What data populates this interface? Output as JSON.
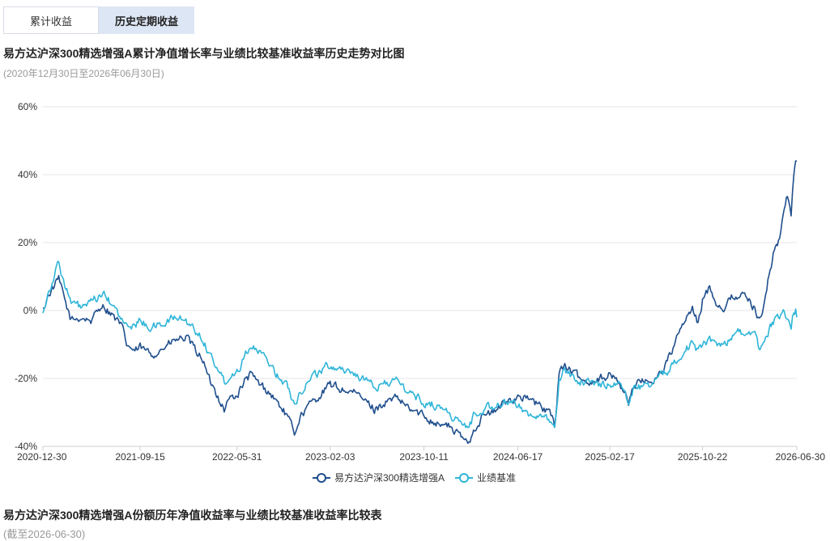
{
  "tabs": [
    {
      "label": "累计收益",
      "active": false
    },
    {
      "label": "历史定期收益",
      "active": true
    }
  ],
  "chart_title": "易方达沪深300精选增强A累计净值增长率与业绩比较基准收益率历史走势对比图",
  "chart_subtitle": "(2020年12月30日至2026年06月30日)",
  "table_title": "易方达沪深300精选增强A份额历年净值收益率与业绩比较基准收益率比较表",
  "table_subtitle": "(截至2026-06-30)",
  "chart_data": {
    "type": "line",
    "ylim": [
      -40,
      60
    ],
    "y_ticks": [
      -40,
      -20,
      0,
      20,
      40,
      60
    ],
    "y_tick_labels": [
      "-40%",
      "-20%",
      "0%",
      "20%",
      "40%",
      "60%"
    ],
    "x_tick_labels": [
      "2020-12-30",
      "2021-09-15",
      "2022-05-31",
      "2023-02-03",
      "2023-10-11",
      "2024-06-17",
      "2025-02-17",
      "2025-10-22",
      "2026-06-30"
    ],
    "x_range": [
      "2020-12-30",
      "2026-06-30"
    ],
    "grid": "horizontal",
    "legend_position": "bottom-center",
    "series": [
      {
        "name": "易方达沪深300精选增强A",
        "color": "#1f4e8c",
        "points": [
          [
            "2020-12-30",
            0
          ],
          [
            "2021-01-15",
            5
          ],
          [
            "2021-02-10",
            9
          ],
          [
            "2021-02-26",
            3
          ],
          [
            "2021-03-15",
            -3
          ],
          [
            "2021-04-10",
            -2
          ],
          [
            "2021-05-10",
            -3
          ],
          [
            "2021-06-05",
            2
          ],
          [
            "2021-07-01",
            -1
          ],
          [
            "2021-07-28",
            -5
          ],
          [
            "2021-08-10",
            -10
          ],
          [
            "2021-09-01",
            -12
          ],
          [
            "2021-09-15",
            -11
          ],
          [
            "2021-10-15",
            -13
          ],
          [
            "2021-11-15",
            -11
          ],
          [
            "2021-12-15",
            -9
          ],
          [
            "2022-01-15",
            -8
          ],
          [
            "2022-02-10",
            -12
          ],
          [
            "2022-03-01",
            -14
          ],
          [
            "2022-03-15",
            -20
          ],
          [
            "2022-04-10",
            -25
          ],
          [
            "2022-04-27",
            -29
          ],
          [
            "2022-05-10",
            -26
          ],
          [
            "2022-05-31",
            -25
          ],
          [
            "2022-06-20",
            -21
          ],
          [
            "2022-07-05",
            -19
          ],
          [
            "2022-08-01",
            -22
          ],
          [
            "2022-08-25",
            -24
          ],
          [
            "2022-09-15",
            -27
          ],
          [
            "2022-10-05",
            -30
          ],
          [
            "2022-10-31",
            -36
          ],
          [
            "2022-11-15",
            -31
          ],
          [
            "2022-12-10",
            -28
          ],
          [
            "2023-01-05",
            -25
          ],
          [
            "2023-02-03",
            -22
          ],
          [
            "2023-03-01",
            -23
          ],
          [
            "2023-04-01",
            -24
          ],
          [
            "2023-05-01",
            -26
          ],
          [
            "2023-06-01",
            -29
          ],
          [
            "2023-07-01",
            -27
          ],
          [
            "2023-08-01",
            -26
          ],
          [
            "2023-09-01",
            -29
          ],
          [
            "2023-10-11",
            -31
          ],
          [
            "2023-11-15",
            -33
          ],
          [
            "2023-12-15",
            -34
          ],
          [
            "2024-01-15",
            -37
          ],
          [
            "2024-02-05",
            -39
          ],
          [
            "2024-02-20",
            -35
          ],
          [
            "2024-03-15",
            -31
          ],
          [
            "2024-04-15",
            -30
          ],
          [
            "2024-05-15",
            -27
          ],
          [
            "2024-06-17",
            -25
          ],
          [
            "2024-07-15",
            -26
          ],
          [
            "2024-08-10",
            -28
          ],
          [
            "2024-09-10",
            -30
          ],
          [
            "2024-09-23",
            -34
          ],
          [
            "2024-10-05",
            -18
          ],
          [
            "2024-10-20",
            -16
          ],
          [
            "2024-11-15",
            -19
          ],
          [
            "2024-12-15",
            -21
          ],
          [
            "2025-01-15",
            -20
          ],
          [
            "2025-02-17",
            -19
          ],
          [
            "2025-03-15",
            -21
          ],
          [
            "2025-04-08",
            -27
          ],
          [
            "2025-04-20",
            -22
          ],
          [
            "2025-05-20",
            -21
          ],
          [
            "2025-06-20",
            -20
          ],
          [
            "2025-07-20",
            -15
          ],
          [
            "2025-08-20",
            -7
          ],
          [
            "2025-09-10",
            -2
          ],
          [
            "2025-09-25",
            0
          ],
          [
            "2025-10-10",
            -4
          ],
          [
            "2025-10-22",
            3
          ],
          [
            "2025-11-10",
            7
          ],
          [
            "2025-11-30",
            2
          ],
          [
            "2025-12-20",
            1
          ],
          [
            "2026-01-10",
            4
          ],
          [
            "2026-01-30",
            5
          ],
          [
            "2026-02-20",
            3
          ],
          [
            "2026-03-10",
            1
          ],
          [
            "2026-03-22",
            -3
          ],
          [
            "2026-04-05",
            3
          ],
          [
            "2026-04-20",
            12
          ],
          [
            "2026-05-01",
            18
          ],
          [
            "2026-05-15",
            21
          ],
          [
            "2026-05-25",
            28
          ],
          [
            "2026-06-05",
            34
          ],
          [
            "2026-06-15",
            28
          ],
          [
            "2026-06-22",
            40
          ],
          [
            "2026-06-27",
            45
          ],
          [
            "2026-06-30",
            44
          ]
        ]
      },
      {
        "name": "业绩基准",
        "color": "#2fb5d8",
        "points": [
          [
            "2020-12-30",
            0
          ],
          [
            "2021-01-15",
            6
          ],
          [
            "2021-02-10",
            14
          ],
          [
            "2021-02-26",
            8
          ],
          [
            "2021-03-15",
            2
          ],
          [
            "2021-04-10",
            1
          ],
          [
            "2021-05-10",
            2
          ],
          [
            "2021-06-05",
            5
          ],
          [
            "2021-07-01",
            2
          ],
          [
            "2021-07-28",
            -3
          ],
          [
            "2021-08-10",
            -5
          ],
          [
            "2021-09-01",
            -4
          ],
          [
            "2021-09-15",
            -3
          ],
          [
            "2021-10-15",
            -5
          ],
          [
            "2021-11-15",
            -4
          ],
          [
            "2021-12-15",
            -2
          ],
          [
            "2022-01-15",
            -3
          ],
          [
            "2022-02-10",
            -6
          ],
          [
            "2022-03-01",
            -8
          ],
          [
            "2022-03-15",
            -12
          ],
          [
            "2022-04-10",
            -17
          ],
          [
            "2022-04-27",
            -21
          ],
          [
            "2022-05-10",
            -19
          ],
          [
            "2022-05-31",
            -18
          ],
          [
            "2022-06-20",
            -13
          ],
          [
            "2022-07-05",
            -10
          ],
          [
            "2022-08-01",
            -13
          ],
          [
            "2022-08-25",
            -15
          ],
          [
            "2022-09-15",
            -19
          ],
          [
            "2022-10-05",
            -21
          ],
          [
            "2022-10-31",
            -27
          ],
          [
            "2022-11-15",
            -24
          ],
          [
            "2022-12-10",
            -20
          ],
          [
            "2023-01-05",
            -18
          ],
          [
            "2023-02-03",
            -16
          ],
          [
            "2023-03-01",
            -17
          ],
          [
            "2023-04-01",
            -18
          ],
          [
            "2023-05-01",
            -20
          ],
          [
            "2023-06-01",
            -23
          ],
          [
            "2023-07-01",
            -21
          ],
          [
            "2023-08-01",
            -21
          ],
          [
            "2023-09-01",
            -24
          ],
          [
            "2023-10-11",
            -27
          ],
          [
            "2023-11-15",
            -28
          ],
          [
            "2023-12-15",
            -30
          ],
          [
            "2024-01-15",
            -33
          ],
          [
            "2024-02-05",
            -35
          ],
          [
            "2024-02-20",
            -31
          ],
          [
            "2024-03-15",
            -29
          ],
          [
            "2024-04-15",
            -28
          ],
          [
            "2024-05-15",
            -27
          ],
          [
            "2024-06-17",
            -28
          ],
          [
            "2024-07-15",
            -30
          ],
          [
            "2024-08-10",
            -31
          ],
          [
            "2024-09-10",
            -33
          ],
          [
            "2024-09-23",
            -35
          ],
          [
            "2024-10-05",
            -20
          ],
          [
            "2024-10-20",
            -18
          ],
          [
            "2024-11-15",
            -20
          ],
          [
            "2024-12-15",
            -21
          ],
          [
            "2025-01-15",
            -22
          ],
          [
            "2025-02-17",
            -21
          ],
          [
            "2025-03-15",
            -22
          ],
          [
            "2025-04-08",
            -26
          ],
          [
            "2025-04-20",
            -23
          ],
          [
            "2025-05-20",
            -22
          ],
          [
            "2025-06-20",
            -21
          ],
          [
            "2025-07-20",
            -18
          ],
          [
            "2025-08-20",
            -13
          ],
          [
            "2025-09-10",
            -11
          ],
          [
            "2025-09-25",
            -10
          ],
          [
            "2025-10-10",
            -12
          ],
          [
            "2025-10-22",
            -11
          ],
          [
            "2025-11-10",
            -8
          ],
          [
            "2025-11-30",
            -10
          ],
          [
            "2025-12-20",
            -10
          ],
          [
            "2026-01-10",
            -7
          ],
          [
            "2026-01-30",
            -6
          ],
          [
            "2026-02-20",
            -7
          ],
          [
            "2026-03-10",
            -8
          ],
          [
            "2026-03-22",
            -11
          ],
          [
            "2026-04-05",
            -8
          ],
          [
            "2026-04-20",
            -5
          ],
          [
            "2026-05-01",
            -3
          ],
          [
            "2026-05-15",
            -2
          ],
          [
            "2026-05-25",
            -1
          ],
          [
            "2026-06-05",
            -2
          ],
          [
            "2026-06-15",
            -4
          ],
          [
            "2026-06-22",
            0
          ],
          [
            "2026-06-27",
            0
          ],
          [
            "2026-06-30",
            -2
          ]
        ]
      }
    ]
  }
}
